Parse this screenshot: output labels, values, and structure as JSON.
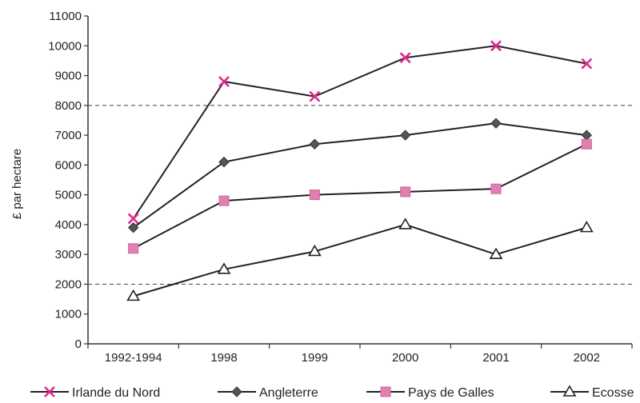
{
  "chart_data": {
    "type": "line",
    "title": "",
    "xlabel": "",
    "ylabel": "£ par hectare",
    "ylim": [
      0,
      11000
    ],
    "ytick_step": 1000,
    "yticks": [
      "0",
      "1000",
      "2000",
      "3000",
      "4000",
      "5000",
      "6000",
      "7000",
      "8000",
      "9000",
      "10000",
      "11000"
    ],
    "dashed_gridlines": [
      2000,
      8000
    ],
    "categories": [
      "1992-1994",
      "1998",
      "1999",
      "2000",
      "2001",
      "2002"
    ],
    "legend_position": "bottom",
    "series": [
      {
        "name": "Irlande du Nord",
        "marker": "x",
        "color": "#222222",
        "marker_color": "#e0288c",
        "values": [
          4200,
          8800,
          8300,
          9600,
          10000,
          9400
        ]
      },
      {
        "name": "Angleterre",
        "marker": "diamond",
        "color": "#222222",
        "marker_color": "#555555",
        "values": [
          3900,
          6100,
          6700,
          7000,
          7400,
          7000
        ]
      },
      {
        "name": "Pays de Galles",
        "marker": "square",
        "color": "#222222",
        "marker_color": "#e080b0",
        "values": [
          3200,
          4800,
          5000,
          5100,
          5200,
          6700
        ]
      },
      {
        "name": "Ecosse",
        "marker": "triangle",
        "color": "#222222",
        "marker_color": "#222222",
        "values": [
          1600,
          2500,
          3100,
          4000,
          3000,
          3900
        ]
      }
    ]
  }
}
